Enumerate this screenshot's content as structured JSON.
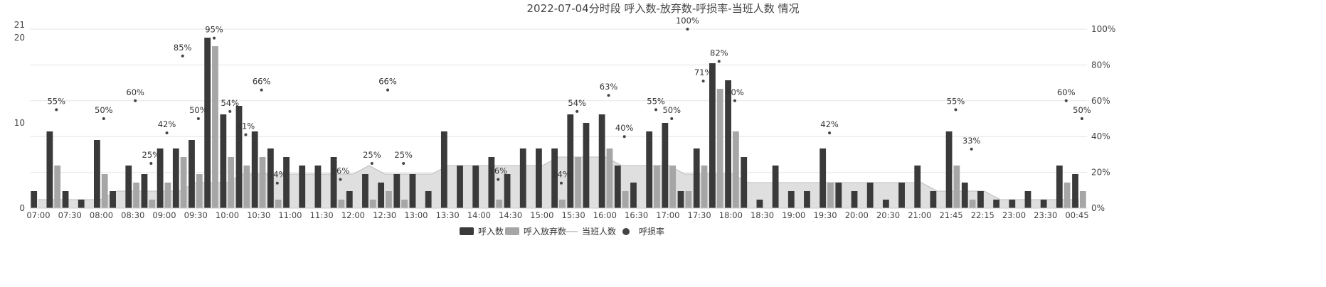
{
  "chart_data": {
    "type": "bar",
    "title": "2022-07-04分时段 呼入数-放弃数-呼损率-当班人数 情况",
    "legend": [
      "呼入数",
      "呼入放弃数",
      "当班人数",
      "呼损率"
    ],
    "legend_position": "bottom",
    "y_left": {
      "min": 0,
      "max": 21,
      "ticks": [
        0,
        10,
        20,
        21
      ]
    },
    "y_right": {
      "min": 0,
      "max": 100,
      "unit": "%",
      "ticks": [
        "0%",
        "20%",
        "40%",
        "60%",
        "80%",
        "100%"
      ]
    },
    "grid": true,
    "x_tick_labels": [
      "07:00",
      "07:30",
      "08:00",
      "08:30",
      "09:00",
      "09:30",
      "10:00",
      "10:30",
      "11:00",
      "11:30",
      "12:00",
      "12:30",
      "13:00",
      "13:30",
      "14:00",
      "14:30",
      "15:00",
      "15:30",
      "16:00",
      "16:30",
      "17:00",
      "17:30",
      "18:00",
      "18:30",
      "19:00",
      "19:30",
      "20:00",
      "20:30",
      "21:00",
      "21:45",
      "22:15",
      "23:00",
      "23:30",
      "00:45"
    ],
    "slots": [
      {
        "calls": 2,
        "abandoned": 0,
        "staff": 1
      },
      {
        "calls": 9,
        "abandoned": 5,
        "staff": 1,
        "rate": 55
      },
      {
        "calls": 2,
        "abandoned": 0,
        "staff": 1
      },
      {
        "calls": 1,
        "abandoned": 0,
        "staff": 1
      },
      {
        "calls": 8,
        "abandoned": 4,
        "staff": 1,
        "rate": 50
      },
      {
        "calls": 2,
        "abandoned": 0,
        "staff": 2
      },
      {
        "calls": 5,
        "abandoned": 3,
        "staff": 2,
        "rate": 60
      },
      {
        "calls": 4,
        "abandoned": 1,
        "staff": 2,
        "rate": 25
      },
      {
        "calls": 7,
        "abandoned": 3,
        "staff": 2,
        "rate": 42
      },
      {
        "calls": 7,
        "abandoned": 6,
        "staff": 2,
        "rate": 85
      },
      {
        "calls": 8,
        "abandoned": 4,
        "staff": 3,
        "rate": 50
      },
      {
        "calls": 20,
        "abandoned": 19,
        "staff": 3,
        "rate": 95
      },
      {
        "calls": 11,
        "abandoned": 6,
        "staff": 3,
        "rate": 54
      },
      {
        "calls": 12,
        "abandoned": 5,
        "staff": 4,
        "rate": 41
      },
      {
        "calls": 9,
        "abandoned": 6,
        "staff": 4,
        "rate": 66
      },
      {
        "calls": 7,
        "abandoned": 1,
        "staff": 4,
        "rate": 14
      },
      {
        "calls": 6,
        "abandoned": 0,
        "staff": 4
      },
      {
        "calls": 5,
        "abandoned": 0,
        "staff": 4
      },
      {
        "calls": 5,
        "abandoned": 0,
        "staff": 4
      },
      {
        "calls": 6,
        "abandoned": 1,
        "staff": 4,
        "rate": 16
      },
      {
        "calls": 2,
        "abandoned": 0,
        "staff": 4
      },
      {
        "calls": 4,
        "abandoned": 1,
        "staff": 5,
        "rate": 25
      },
      {
        "calls": 3,
        "abandoned": 2,
        "staff": 4,
        "rate": 66
      },
      {
        "calls": 4,
        "abandoned": 1,
        "staff": 4,
        "rate": 25
      },
      {
        "calls": 4,
        "abandoned": 0,
        "staff": 4
      },
      {
        "calls": 2,
        "abandoned": 0,
        "staff": 4
      },
      {
        "calls": 9,
        "abandoned": 0,
        "staff": 5
      },
      {
        "calls": 5,
        "abandoned": 0,
        "staff": 5
      },
      {
        "calls": 5,
        "abandoned": 0,
        "staff": 5
      },
      {
        "calls": 6,
        "abandoned": 1,
        "staff": 5,
        "rate": 16
      },
      {
        "calls": 4,
        "abandoned": 0,
        "staff": 5
      },
      {
        "calls": 7,
        "abandoned": 0,
        "staff": 5
      },
      {
        "calls": 7,
        "abandoned": 0,
        "staff": 5
      },
      {
        "calls": 7,
        "abandoned": 1,
        "staff": 6,
        "rate": 14
      },
      {
        "calls": 11,
        "abandoned": 6,
        "staff": 6,
        "rate": 54
      },
      {
        "calls": 10,
        "abandoned": 0,
        "staff": 6
      },
      {
        "calls": 11,
        "abandoned": 7,
        "staff": 6,
        "rate": 63
      },
      {
        "calls": 5,
        "abandoned": 2,
        "staff": 5,
        "rate": 40
      },
      {
        "calls": 3,
        "abandoned": 0,
        "staff": 5
      },
      {
        "calls": 9,
        "abandoned": 5,
        "staff": 5,
        "rate": 55
      },
      {
        "calls": 10,
        "abandoned": 5,
        "staff": 5,
        "rate": 50
      },
      {
        "calls": 2,
        "abandoned": 2,
        "staff": 4,
        "rate": 100
      },
      {
        "calls": 7,
        "abandoned": 5,
        "staff": 4,
        "rate": 71
      },
      {
        "calls": 17,
        "abandoned": 14,
        "staff": 4,
        "rate": 82
      },
      {
        "calls": 15,
        "abandoned": 9,
        "staff": 4,
        "rate": 60
      },
      {
        "calls": 6,
        "abandoned": 0,
        "staff": 3
      },
      {
        "calls": 1,
        "abandoned": 0,
        "staff": 3
      },
      {
        "calls": 5,
        "abandoned": 0,
        "staff": 3
      },
      {
        "calls": 2,
        "abandoned": 0,
        "staff": 3
      },
      {
        "calls": 2,
        "abandoned": 0,
        "staff": 3
      },
      {
        "calls": 7,
        "abandoned": 3,
        "staff": 3,
        "rate": 42
      },
      {
        "calls": 3,
        "abandoned": 0,
        "staff": 3
      },
      {
        "calls": 2,
        "abandoned": 0,
        "staff": 3
      },
      {
        "calls": 3,
        "abandoned": 0,
        "staff": 3
      },
      {
        "calls": 1,
        "abandoned": 0,
        "staff": 3
      },
      {
        "calls": 3,
        "abandoned": 0,
        "staff": 3
      },
      {
        "calls": 5,
        "abandoned": 0,
        "staff": 3
      },
      {
        "calls": 2,
        "abandoned": 0,
        "staff": 2
      },
      {
        "calls": 9,
        "abandoned": 5,
        "staff": 2,
        "rate": 55
      },
      {
        "calls": 3,
        "abandoned": 1,
        "staff": 2,
        "rate": 33
      },
      {
        "calls": 2,
        "abandoned": 0,
        "staff": 2
      },
      {
        "calls": 1,
        "abandoned": 0,
        "staff": 1
      },
      {
        "calls": 1,
        "abandoned": 0,
        "staff": 1
      },
      {
        "calls": 2,
        "abandoned": 0,
        "staff": 1
      },
      {
        "calls": 1,
        "abandoned": 0,
        "staff": 1
      },
      {
        "calls": 5,
        "abandoned": 3,
        "staff": 1,
        "rate": 60
      },
      {
        "calls": 4,
        "abandoned": 2,
        "staff": 1,
        "rate": 50
      }
    ],
    "colors": {
      "calls": "#3a3a3a",
      "abandoned": "#a6a6a6",
      "staff_fill": "#dcdcdc",
      "staff_line": "#bdbdbd",
      "rate": "#444444",
      "grid": "#e6e6e6"
    }
  }
}
